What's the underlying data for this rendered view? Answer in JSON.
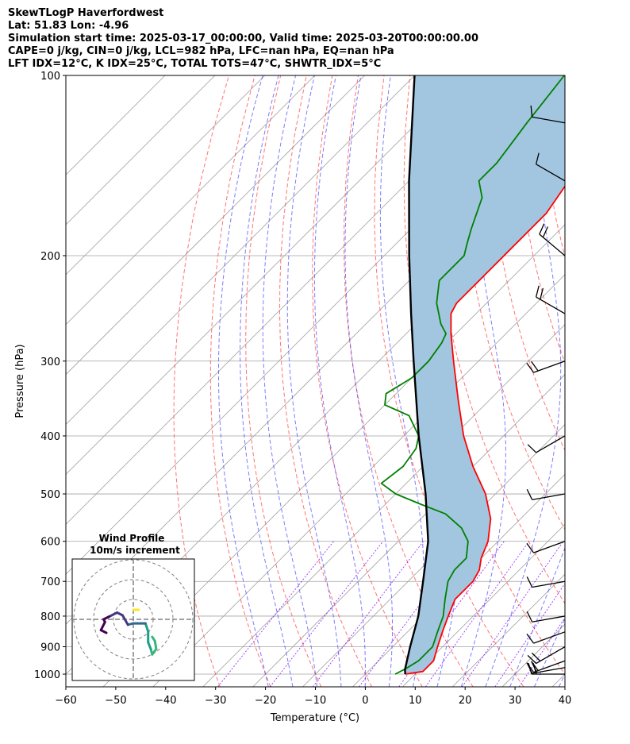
{
  "header": {
    "line1": "SkewTLogP Haverfordwest",
    "line2": "Lat: 51.83   Lon: -4.96",
    "line3": "Simulation start time: 2025-03-17_00:00:00, Valid time: 2025-03-20T00:00:00.00",
    "line4": "CAPE=0 j/kg, CIN=0 j/kg, LCL=982 hPa, LFC=nan hPa, EQ=nan hPa",
    "line5": "LFT IDX=12°C, K IDX=25°C, TOTAL TOTS=47°C, SHWTR_IDX=5°C"
  },
  "chart_data": {
    "type": "line",
    "xlabel": "Temperature (°C)",
    "ylabel": "Pressure (hPa)",
    "xlim": [
      -60,
      40
    ],
    "ylim": [
      1050,
      100
    ],
    "yscale": "log",
    "skew": true,
    "grid": true,
    "x_ticks": [
      "−60",
      "−50",
      "−40",
      "−30",
      "−20",
      "−10",
      "0",
      "10",
      "20",
      "30",
      "40"
    ],
    "y_ticks": [
      "100",
      "200",
      "300",
      "400",
      "500",
      "600",
      "700",
      "800",
      "900",
      "1000"
    ],
    "y_tick_values": [
      100,
      200,
      300,
      400,
      500,
      600,
      700,
      800,
      900,
      1000
    ],
    "series": [
      {
        "name": "Temperature",
        "color": "#ff0000",
        "points": [
          [
            1000,
            8
          ],
          [
            990,
            11
          ],
          [
            950,
            11
          ],
          [
            900,
            9
          ],
          [
            850,
            7
          ],
          [
            800,
            5
          ],
          [
            750,
            3
          ],
          [
            700,
            3
          ],
          [
            670,
            2
          ],
          [
            640,
            0
          ],
          [
            600,
            -2
          ],
          [
            550,
            -6
          ],
          [
            500,
            -12
          ],
          [
            450,
            -20
          ],
          [
            400,
            -28
          ],
          [
            350,
            -36
          ],
          [
            300,
            -45
          ],
          [
            270,
            -51
          ],
          [
            250,
            -55
          ],
          [
            240,
            -56
          ],
          [
            220,
            -56
          ],
          [
            200,
            -56
          ],
          [
            170,
            -56
          ],
          [
            150,
            -58
          ],
          [
            130,
            -60
          ],
          [
            115,
            -62
          ],
          [
            100,
            -63
          ]
        ]
      },
      {
        "name": "Dewpoint",
        "color": "#008000",
        "points": [
          [
            1000,
            6
          ],
          [
            980,
            7
          ],
          [
            950,
            8
          ],
          [
            900,
            8
          ],
          [
            850,
            6
          ],
          [
            800,
            4
          ],
          [
            750,
            1
          ],
          [
            700,
            -2
          ],
          [
            670,
            -3
          ],
          [
            640,
            -3
          ],
          [
            600,
            -6
          ],
          [
            570,
            -10
          ],
          [
            540,
            -16
          ],
          [
            520,
            -23
          ],
          [
            500,
            -30
          ],
          [
            480,
            -35
          ],
          [
            450,
            -34
          ],
          [
            420,
            -35
          ],
          [
            400,
            -37
          ],
          [
            370,
            -43
          ],
          [
            355,
            -50
          ],
          [
            340,
            -52
          ],
          [
            320,
            -50
          ],
          [
            300,
            -50
          ],
          [
            280,
            -51
          ],
          [
            270,
            -52
          ],
          [
            260,
            -55
          ],
          [
            240,
            -60
          ],
          [
            220,
            -64
          ],
          [
            200,
            -64
          ],
          [
            190,
            -66
          ],
          [
            180,
            -68
          ],
          [
            160,
            -72
          ],
          [
            150,
            -76
          ],
          [
            140,
            -76
          ],
          [
            120,
            -78
          ],
          [
            100,
            -80
          ]
        ]
      },
      {
        "name": "Parcel",
        "color": "#000000",
        "points": [
          [
            1000,
            8
          ],
          [
            982,
            7
          ],
          [
            900,
            3.5
          ],
          [
            800,
            -1
          ],
          [
            700,
            -7
          ],
          [
            600,
            -14
          ],
          [
            500,
            -24
          ],
          [
            400,
            -37
          ],
          [
            300,
            -53
          ],
          [
            250,
            -63
          ],
          [
            200,
            -75
          ],
          [
            150,
            -90
          ],
          [
            100,
            -110
          ]
        ]
      }
    ],
    "shading": {
      "color": "#a2c6e0",
      "between": [
        "Temperature",
        "Parcel"
      ]
    },
    "reference_lines": {
      "dry_adiabats_color": "#ff4444",
      "moist_adiabats_color": "#4444ff",
      "mixing_ratio_color": "#7f00ff",
      "isotherm_color": "#a0a0a0"
    },
    "wind_barbs": [
      {
        "p": 1000,
        "speed": 20,
        "dir": 270
      },
      {
        "p": 975,
        "speed": 15,
        "dir": 260
      },
      {
        "p": 950,
        "speed": 15,
        "dir": 250
      },
      {
        "p": 900,
        "speed": 15,
        "dir": 240
      },
      {
        "p": 850,
        "speed": 10,
        "dir": 250
      },
      {
        "p": 800,
        "speed": 10,
        "dir": 260
      },
      {
        "p": 700,
        "speed": 10,
        "dir": 260
      },
      {
        "p": 600,
        "speed": 10,
        "dir": 250
      },
      {
        "p": 500,
        "speed": 10,
        "dir": 260
      },
      {
        "p": 400,
        "speed": 10,
        "dir": 240
      },
      {
        "p": 300,
        "speed": 15,
        "dir": 250
      },
      {
        "p": 250,
        "speed": 15,
        "dir": 300
      },
      {
        "p": 200,
        "speed": 15,
        "dir": 310
      },
      {
        "p": 150,
        "speed": 10,
        "dir": 300
      },
      {
        "p": 120,
        "speed": 10,
        "dir": 280
      }
    ],
    "inset": {
      "title": "Wind Profile",
      "subtitle": "10m/s increment",
      "hodograph": [
        [
          1.4,
          -1.3
        ],
        [
          1.6,
          -1.6
        ],
        [
          1.7,
          -2.2
        ],
        [
          1.4,
          -2.6
        ],
        [
          1.3,
          -2.2
        ],
        [
          1.1,
          -1.7
        ],
        [
          1.1,
          -0.9
        ],
        [
          0.9,
          -0.3
        ],
        [
          0.3,
          -0.3
        ],
        [
          0.0,
          -0.3
        ],
        [
          -0.4,
          -0.4
        ],
        [
          -0.8,
          0.3
        ],
        [
          -1.2,
          0.5
        ],
        [
          -1.8,
          0.2
        ],
        [
          -2.2,
          0.0
        ],
        [
          -2.1,
          -0.2
        ],
        [
          -2.4,
          -0.8
        ],
        [
          -2.0,
          -1.0
        ]
      ]
    }
  }
}
